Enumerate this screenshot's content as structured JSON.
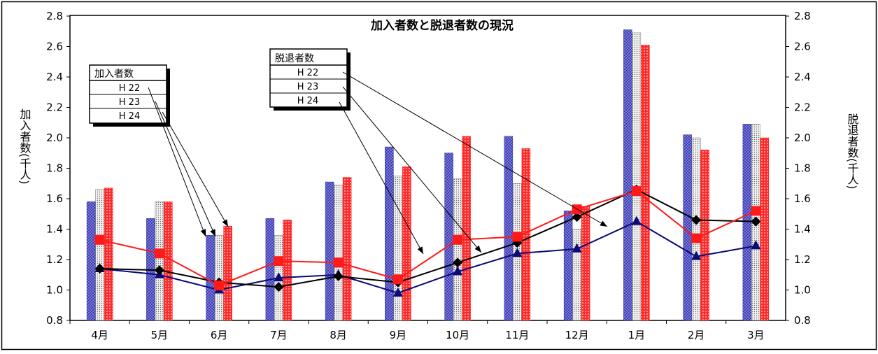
{
  "chart_data": {
    "type": "bar",
    "title": "加入者数と脱退者数の現況",
    "ylabel": "加入者数(千人)",
    "y2label": "脱退者数(千人)",
    "ylim": [
      0.8,
      2.8
    ],
    "y2lim": [
      0.8,
      2.8
    ],
    "yticks": [
      "0.8",
      "1.0",
      "1.2",
      "1.4",
      "1.6",
      "1.8",
      "2.0",
      "2.2",
      "2.4",
      "2.6",
      "2.8"
    ],
    "categories": [
      "4月",
      "5月",
      "6月",
      "7月",
      "8月",
      "9月",
      "10月",
      "11月",
      "12月",
      "1月",
      "2月",
      "3月"
    ],
    "legend_bars": {
      "title": "加入者数",
      "items": [
        "H 22",
        "H 23",
        "H 24"
      ]
    },
    "legend_lines": {
      "title": "脱退者数",
      "items": [
        "H 22",
        "H 23",
        "H 24"
      ]
    },
    "bar_series": [
      {
        "key": "H 22",
        "color": "#5858c8",
        "values": [
          1.58,
          1.47,
          1.36,
          1.47,
          1.71,
          1.94,
          1.9,
          2.01,
          1.52,
          2.71,
          2.02,
          2.09
        ]
      },
      {
        "key": "H 23",
        "color": "#d8d8d8",
        "values": [
          1.66,
          1.58,
          1.36,
          1.36,
          1.69,
          1.75,
          1.73,
          1.7,
          1.4,
          2.69,
          2.0,
          2.09
        ]
      },
      {
        "key": "H 24",
        "color": "#ff3030",
        "values": [
          1.67,
          1.58,
          1.42,
          1.46,
          1.74,
          1.81,
          2.01,
          1.93,
          1.55,
          2.61,
          1.92,
          2.0
        ]
      }
    ],
    "line_series": [
      {
        "key": "H 22",
        "color": "#0a0a78",
        "marker": "triangle",
        "values": [
          1.14,
          1.1,
          1.0,
          1.08,
          1.1,
          0.98,
          1.12,
          1.24,
          1.27,
          1.45,
          1.22,
          1.29
        ]
      },
      {
        "key": "H 23",
        "color": "#000000",
        "marker": "diamond",
        "values": [
          1.14,
          1.13,
          1.05,
          1.02,
          1.09,
          1.05,
          1.18,
          1.31,
          1.48,
          1.66,
          1.46,
          1.45
        ]
      },
      {
        "key": "H 24",
        "color": "#ff1a1a",
        "marker": "square",
        "values": [
          1.33,
          1.24,
          1.03,
          1.19,
          1.18,
          1.07,
          1.33,
          1.35,
          1.53,
          1.65,
          1.34,
          1.52
        ]
      }
    ],
    "grid": false,
    "legend": "top-left"
  }
}
